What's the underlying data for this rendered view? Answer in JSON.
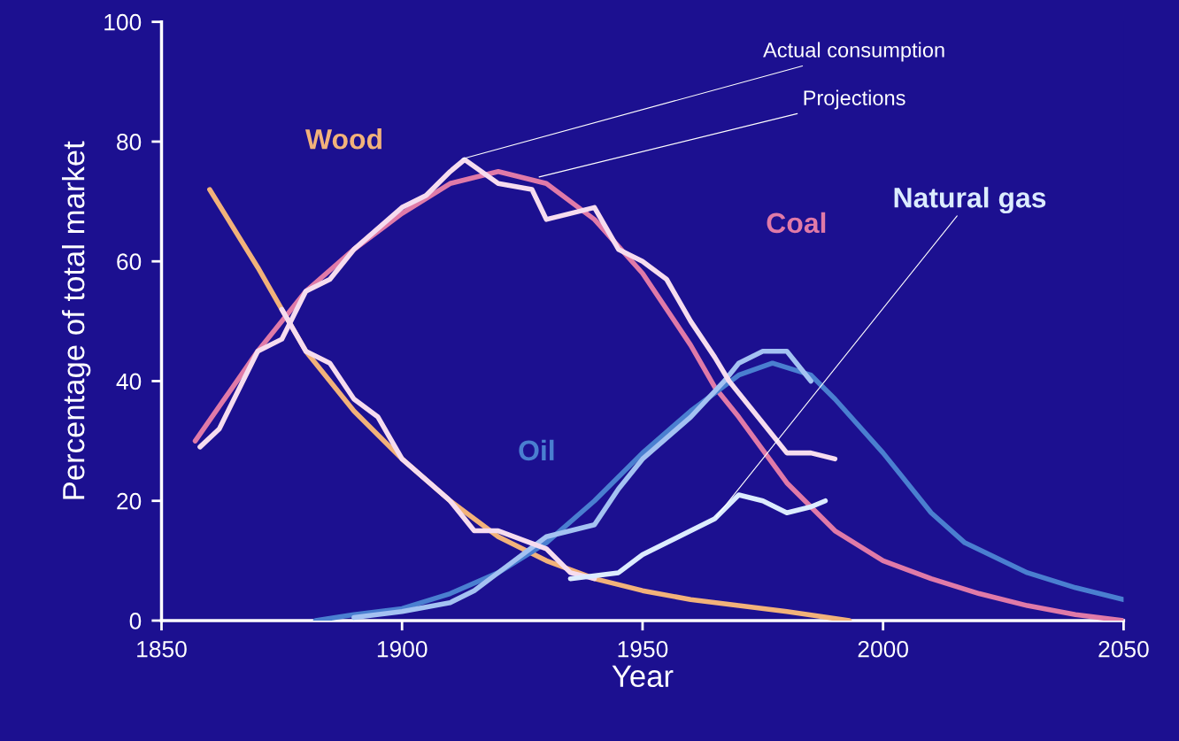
{
  "chart_data": {
    "type": "line",
    "xlabel": "Year",
    "ylabel": "Percentage of total market",
    "xlim": [
      1850,
      2050
    ],
    "xticks": [
      1850,
      1900,
      1950,
      2000,
      2050
    ],
    "ylim": [
      0,
      100
    ],
    "yticks": [
      0,
      20,
      40,
      60,
      80,
      100
    ],
    "grid": false,
    "legend": false,
    "series": [
      {
        "name": "Wood",
        "color": "#f2b27a",
        "x": [
          1860,
          1870,
          1875,
          1880,
          1890,
          1900,
          1910,
          1920,
          1930,
          1940,
          1950,
          1960,
          1970,
          1980,
          1993
        ],
        "values": [
          72,
          59,
          52,
          45,
          35,
          27,
          20,
          14,
          10,
          7,
          5,
          3.5,
          2.5,
          1.5,
          0
        ]
      },
      {
        "name": "Coal",
        "color": "#e07aa8",
        "x": [
          1857,
          1870,
          1880,
          1890,
          1900,
          1910,
          1920,
          1930,
          1940,
          1950,
          1960,
          1965,
          1970,
          1980,
          1990,
          2000,
          2010,
          2020,
          2030,
          2040,
          2050
        ],
        "values": [
          30,
          45,
          55,
          62,
          68,
          73,
          75,
          73,
          67,
          58,
          46,
          39,
          34,
          23,
          15,
          10,
          7,
          4.5,
          2.5,
          1,
          0
        ]
      },
      {
        "name": "Oil",
        "color": "#4a7fd0",
        "x": [
          1882,
          1890,
          1900,
          1910,
          1920,
          1930,
          1940,
          1950,
          1960,
          1970,
          1977,
          1985,
          1990,
          2000,
          2010,
          2017,
          2030,
          2040,
          2050
        ],
        "values": [
          0,
          1,
          2,
          4.5,
          8,
          13,
          20,
          28,
          35,
          41,
          43,
          41,
          37,
          28,
          18,
          13,
          8,
          5.5,
          3.5
        ]
      },
      {
        "color": "#a4c2f2",
        "x": [
          1890,
          1900,
          1910,
          1915,
          1920,
          1930,
          1935,
          1940,
          1945,
          1950,
          1960,
          1967,
          1970,
          1975,
          1980,
          1985
        ],
        "values": [
          0.5,
          1.5,
          3,
          5,
          8,
          14,
          15,
          16,
          22,
          27,
          34,
          40,
          43,
          45,
          45,
          40
        ]
      },
      {
        "color": "#f6dcef",
        "x": [
          1858,
          1862,
          1870,
          1875,
          1880,
          1885,
          1890,
          1900,
          1905,
          1910,
          1913,
          1920,
          1927,
          1930,
          1935,
          1940,
          1945,
          1950,
          1955,
          1960,
          1965,
          1968,
          1975,
          1980,
          1985,
          1990
        ],
        "values": [
          29,
          32,
          45,
          47,
          55,
          57,
          62,
          69,
          71,
          75,
          77,
          73,
          72,
          67,
          68,
          69,
          62,
          60,
          57,
          50,
          44,
          40,
          33,
          28,
          28,
          27
        ]
      },
      {
        "color": "#f6dcef",
        "x": [
          1875,
          1880,
          1885,
          1890,
          1895,
          1900,
          1910,
          1915,
          1920,
          1930,
          1935,
          1940
        ],
        "values": [
          52,
          45,
          43,
          37,
          34,
          27,
          20,
          15,
          15,
          12,
          8,
          7
        ]
      },
      {
        "name": "Natural gas",
        "color": "#dcecff",
        "x": [
          1935,
          1945,
          1950,
          1955,
          1960,
          1965,
          1970,
          1975,
          1980,
          1985,
          1988
        ],
        "values": [
          7,
          8,
          11,
          13,
          15,
          17,
          21,
          20,
          18,
          19,
          20
        ]
      }
    ],
    "annotations": [
      {
        "text": "Actual consumption",
        "x": 1912,
        "y": 77
      },
      {
        "text": "Projections",
        "x": 1928,
        "y": 74
      }
    ]
  }
}
